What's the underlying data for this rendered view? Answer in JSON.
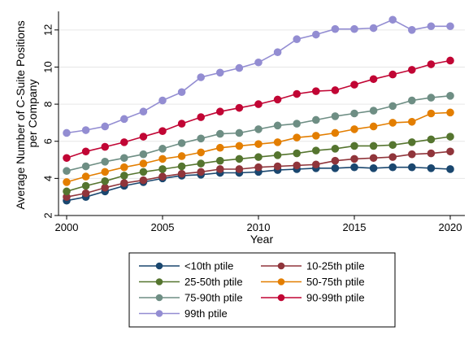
{
  "chart_data": {
    "type": "line",
    "title": "",
    "xlabel": "Year",
    "ylabel_lines": [
      "Average Number of C-Suite Positions",
      "per Company"
    ],
    "xlim": [
      2000,
      2020
    ],
    "ylim": [
      2,
      13
    ],
    "x_ticks": [
      2000,
      2005,
      2010,
      2015,
      2020
    ],
    "y_ticks": [
      2,
      4,
      6,
      8,
      10,
      12
    ],
    "grid": "horizontal",
    "legend_position": "bottom",
    "x": [
      2000,
      2001,
      2002,
      2003,
      2004,
      2005,
      2006,
      2007,
      2008,
      2009,
      2010,
      2011,
      2012,
      2013,
      2014,
      2015,
      2016,
      2017,
      2018,
      2019,
      2020
    ],
    "series": [
      {
        "name": "<10th ptile",
        "color": "#1a476f",
        "values": [
          2.8,
          3.0,
          3.3,
          3.6,
          3.8,
          4.0,
          4.15,
          4.2,
          4.3,
          4.3,
          4.35,
          4.45,
          4.5,
          4.55,
          4.55,
          4.6,
          4.55,
          4.6,
          4.6,
          4.55,
          4.5
        ]
      },
      {
        "name": "10-25th ptile",
        "color": "#90353b",
        "values": [
          3.0,
          3.2,
          3.5,
          3.75,
          3.9,
          4.1,
          4.25,
          4.35,
          4.5,
          4.5,
          4.6,
          4.65,
          4.7,
          4.75,
          4.95,
          5.05,
          5.1,
          5.15,
          5.3,
          5.35,
          5.45
        ]
      },
      {
        "name": "25-50th ptile",
        "color": "#55752f",
        "values": [
          3.3,
          3.6,
          3.85,
          4.15,
          4.35,
          4.5,
          4.65,
          4.8,
          4.95,
          5.05,
          5.15,
          5.25,
          5.35,
          5.5,
          5.6,
          5.75,
          5.75,
          5.8,
          5.95,
          6.1,
          6.25
        ]
      },
      {
        "name": "50-75th ptile",
        "color": "#e37e00",
        "values": [
          3.8,
          4.1,
          4.35,
          4.6,
          4.8,
          5.05,
          5.2,
          5.4,
          5.65,
          5.75,
          5.85,
          5.95,
          6.2,
          6.3,
          6.45,
          6.65,
          6.8,
          7.0,
          7.05,
          7.5,
          7.55
        ]
      },
      {
        "name": "75-90th ptile",
        "color": "#6e8e84",
        "values": [
          4.4,
          4.65,
          4.9,
          5.1,
          5.3,
          5.6,
          5.9,
          6.15,
          6.4,
          6.45,
          6.65,
          6.85,
          6.95,
          7.15,
          7.35,
          7.5,
          7.65,
          7.9,
          8.2,
          8.35,
          8.45
        ]
      },
      {
        "name": "90-99th ptile",
        "color": "#c10534",
        "values": [
          5.1,
          5.45,
          5.7,
          5.95,
          6.25,
          6.55,
          6.95,
          7.3,
          7.6,
          7.8,
          8.0,
          8.25,
          8.55,
          8.7,
          8.75,
          9.05,
          9.35,
          9.6,
          9.85,
          10.15,
          10.35
        ]
      },
      {
        "name": "99th ptile",
        "color": "#938dd2",
        "values": [
          6.45,
          6.6,
          6.8,
          7.2,
          7.6,
          8.2,
          8.65,
          9.45,
          9.7,
          9.95,
          10.25,
          10.8,
          11.5,
          11.75,
          12.05,
          12.05,
          12.1,
          12.55,
          12.0,
          12.2,
          12.2
        ]
      }
    ]
  }
}
